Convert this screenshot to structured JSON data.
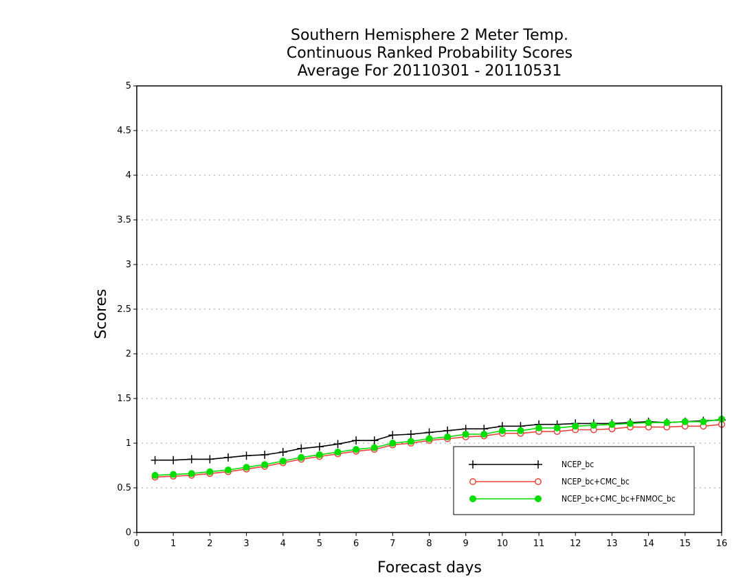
{
  "chart_data": {
    "type": "line",
    "title": [
      "Southern Hemisphere 2 Meter Temp.",
      "Continuous Ranked Probability Scores",
      "Average For 20110301 - 20110531"
    ],
    "xlabel": "Forecast days",
    "ylabel": "Scores",
    "xlim": [
      0,
      16
    ],
    "ylim": [
      0,
      5
    ],
    "xticks": [
      0,
      1,
      2,
      3,
      4,
      5,
      6,
      7,
      8,
      9,
      10,
      11,
      12,
      13,
      14,
      15,
      16
    ],
    "xtick_labels": [
      "0",
      "1",
      "2",
      "3",
      "4",
      "5",
      "6",
      "7",
      "8",
      "9",
      "10",
      "11",
      "12",
      "13",
      "14",
      "15",
      "16"
    ],
    "yticks": [
      0,
      0.5,
      1,
      1.5,
      2,
      2.5,
      3,
      3.5,
      4,
      4.5,
      5
    ],
    "ytick_labels": [
      "0",
      "0.5",
      "1",
      "1.5",
      "2",
      "2.5",
      "3",
      "3.5",
      "4",
      "4.5",
      "5"
    ],
    "grid": true,
    "legend_position": "bottom-right",
    "x": [
      0.5,
      1,
      1.5,
      2,
      2.5,
      3,
      3.5,
      4,
      4.5,
      5,
      5.5,
      6,
      6.5,
      7,
      7.5,
      8,
      8.5,
      9,
      9.5,
      10,
      10.5,
      11,
      11.5,
      12,
      12.5,
      13,
      13.5,
      14,
      14.5,
      15,
      15.5,
      16
    ],
    "series": [
      {
        "name": "NCEP_bc",
        "color": "#000000",
        "marker": "plus",
        "values": [
          0.81,
          0.81,
          0.82,
          0.82,
          0.84,
          0.86,
          0.87,
          0.9,
          0.94,
          0.96,
          0.99,
          1.03,
          1.03,
          1.09,
          1.1,
          1.12,
          1.14,
          1.16,
          1.16,
          1.19,
          1.19,
          1.21,
          1.21,
          1.22,
          1.22,
          1.22,
          1.23,
          1.24,
          1.23,
          1.24,
          1.25,
          1.26
        ]
      },
      {
        "name": "NCEP_bc+CMC_bc",
        "color": "#e8433a",
        "marker": "open-circle",
        "values": [
          0.62,
          0.63,
          0.64,
          0.66,
          0.68,
          0.71,
          0.74,
          0.78,
          0.82,
          0.85,
          0.88,
          0.91,
          0.93,
          0.98,
          1.0,
          1.03,
          1.05,
          1.07,
          1.08,
          1.11,
          1.11,
          1.13,
          1.13,
          1.15,
          1.15,
          1.16,
          1.18,
          1.18,
          1.18,
          1.19,
          1.19,
          1.21
        ]
      },
      {
        "name": "NCEP_bc+CMC_bc+FNMOC_bc",
        "color": "#00dd00",
        "marker": "filled-circle",
        "values": [
          0.64,
          0.65,
          0.66,
          0.68,
          0.7,
          0.73,
          0.76,
          0.8,
          0.84,
          0.87,
          0.9,
          0.93,
          0.95,
          1.0,
          1.02,
          1.05,
          1.07,
          1.1,
          1.1,
          1.14,
          1.14,
          1.17,
          1.17,
          1.19,
          1.2,
          1.21,
          1.22,
          1.23,
          1.23,
          1.24,
          1.24,
          1.27
        ]
      }
    ]
  }
}
